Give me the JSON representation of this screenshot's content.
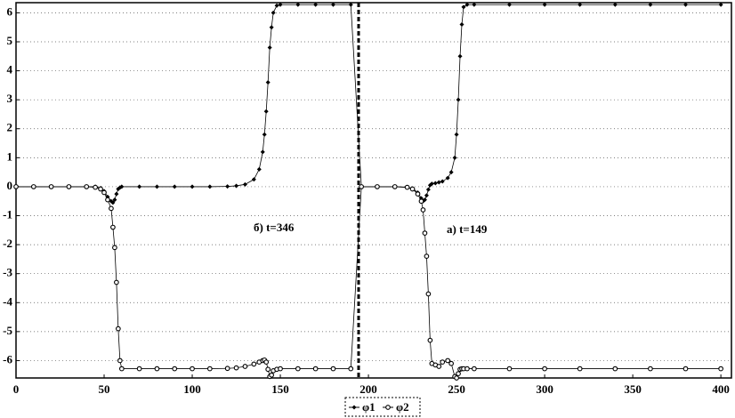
{
  "chart_data": {
    "type": "line",
    "x": [
      0,
      10,
      20,
      30,
      40,
      45,
      48,
      50,
      52,
      54,
      55,
      56,
      57,
      58,
      59,
      60,
      70,
      80,
      90,
      100,
      110,
      120,
      125,
      130,
      135,
      138,
      140,
      141,
      142,
      143,
      144,
      145,
      146,
      148,
      150,
      160,
      170,
      180,
      190,
      196,
      205,
      215,
      222,
      225,
      228,
      230,
      231,
      232,
      233,
      234,
      235,
      236,
      238,
      240,
      242,
      245,
      247,
      249,
      250,
      251,
      252,
      253,
      254,
      256,
      260,
      280,
      300,
      320,
      340,
      360,
      380,
      400
    ],
    "series": [
      {
        "name": "φ1",
        "color": "#000000",
        "marker": "diamond",
        "values": [
          0,
          0,
          0,
          0,
          0,
          0,
          -0.05,
          -0.15,
          -0.35,
          -0.5,
          -0.55,
          -0.45,
          -0.25,
          -0.08,
          -0.03,
          0,
          0,
          0,
          0,
          0,
          0,
          0.01,
          0.03,
          0.08,
          0.25,
          0.6,
          1.2,
          1.8,
          2.6,
          3.6,
          4.8,
          5.5,
          6.0,
          6.25,
          6.28,
          6.28,
          6.28,
          6.28,
          6.28,
          0,
          0,
          0,
          -0.02,
          -0.06,
          -0.2,
          -0.4,
          -0.5,
          -0.45,
          -0.3,
          -0.1,
          0.05,
          0.1,
          0.12,
          0.15,
          0.18,
          0.3,
          0.5,
          1.0,
          1.8,
          3.0,
          4.5,
          5.6,
          6.2,
          6.28,
          6.28,
          6.28,
          6.28,
          6.28,
          6.28,
          6.28,
          6.28,
          6.28
        ]
      },
      {
        "name": "φ2",
        "color": "#000000",
        "marker": "circle",
        "values": [
          0,
          0,
          0,
          0,
          0,
          -0.02,
          -0.08,
          -0.2,
          -0.45,
          -0.75,
          -1.4,
          -2.1,
          -3.3,
          -4.9,
          -6.0,
          -6.28,
          -6.28,
          -6.28,
          -6.28,
          -6.28,
          -6.28,
          -6.27,
          -6.25,
          -6.2,
          -6.12,
          -6.05,
          -6.0,
          -5.98,
          -6.05,
          -6.3,
          -6.55,
          -6.5,
          -6.35,
          -6.3,
          -6.28,
          -6.28,
          -6.28,
          -6.28,
          -6.28,
          0,
          0,
          0,
          -0.02,
          -0.08,
          -0.25,
          -0.5,
          -0.8,
          -1.6,
          -2.4,
          -3.7,
          -5.3,
          -6.1,
          -6.15,
          -6.2,
          -6.05,
          -6.0,
          -6.1,
          -6.55,
          -6.6,
          -6.45,
          -6.3,
          -6.28,
          -6.28,
          -6.28,
          -6.28,
          -6.28,
          -6.28,
          -6.28,
          -6.28,
          -6.28,
          -6.28,
          -6.28
        ]
      }
    ],
    "annotations": [
      "б) t=346",
      "a) t=149"
    ],
    "xlim": [
      0,
      406
    ],
    "xticks": [
      0,
      50,
      100,
      150,
      200,
      250,
      300,
      350,
      400
    ],
    "ylim": [
      -6.6,
      6.35
    ],
    "yticks": [
      -6,
      -5,
      -4,
      -3,
      -2,
      -1,
      0,
      1,
      2,
      3,
      4,
      5,
      6
    ],
    "grid": true
  }
}
